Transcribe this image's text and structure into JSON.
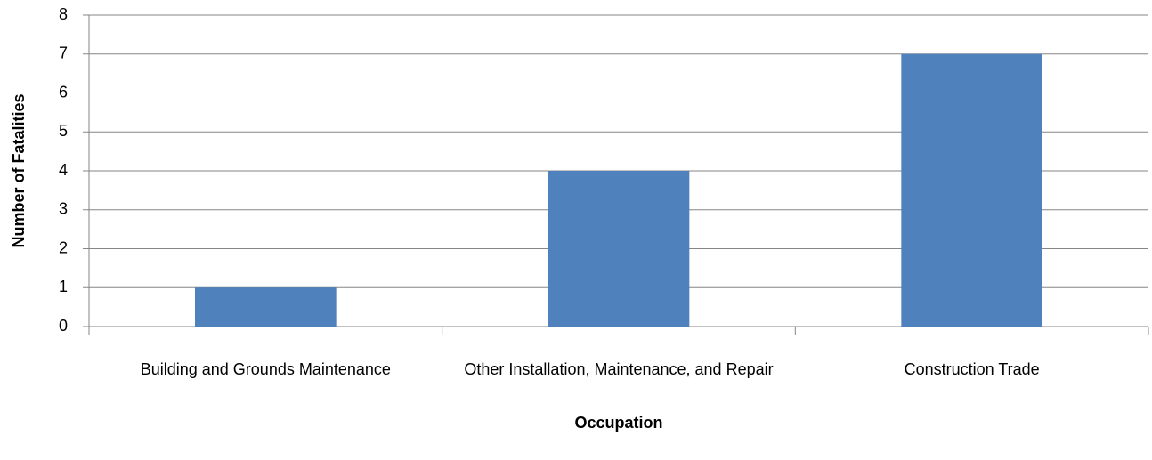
{
  "chart_data": {
    "type": "bar",
    "x_label": "Occupation",
    "y_label": "Number of Fatalities",
    "categories": [
      "Building and Grounds Maintenance",
      "Other Installation, Maintenance, and Repair",
      "Construction Trade"
    ],
    "values": [
      1,
      4,
      7
    ],
    "color": "#4f81bd",
    "ylim": [
      0,
      8
    ],
    "yticks": [
      0,
      1,
      2,
      3,
      4,
      5,
      6,
      7,
      8
    ],
    "grid": true
  }
}
